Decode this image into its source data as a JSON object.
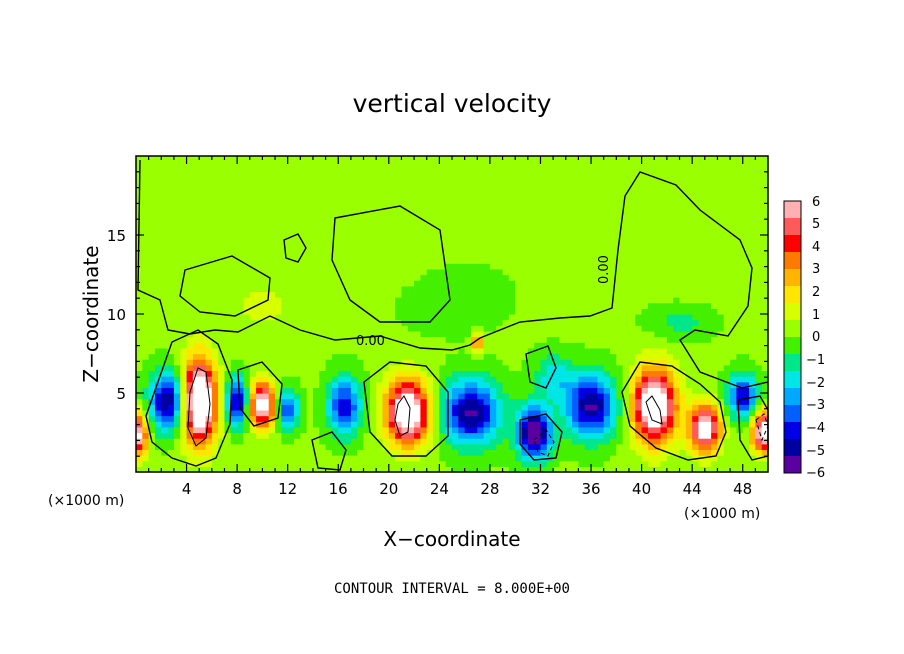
{
  "chart_data": {
    "type": "heatmap",
    "title": "vertical velocity",
    "xlabel": "X−coordinate",
    "ylabel": "Z−coordinate",
    "x_unit_left": "(×1000 m)",
    "x_unit_right": "(×1000 m)",
    "xlim": [
      0,
      50
    ],
    "ylim": [
      0,
      20
    ],
    "x_ticks": [
      "4",
      "8",
      "12",
      "16",
      "20",
      "24",
      "28",
      "32",
      "36",
      "40",
      "44",
      "48"
    ],
    "y_ticks": [
      "5",
      "10",
      "15"
    ],
    "colorbar": {
      "ticks": [
        "6",
        "5",
        "4",
        "3",
        "2",
        "1",
        "0",
        "−1",
        "−2",
        "−3",
        "−4",
        "−5",
        "−6"
      ],
      "range": [
        -6,
        6
      ],
      "colors": [
        "#ffb0b0",
        "#ff5a5a",
        "#ff0000",
        "#ff7a00",
        "#ffb400",
        "#ffe600",
        "#d8ff00",
        "#9aff00",
        "#44f000",
        "#00e68a",
        "#00e6e6",
        "#00a8ff",
        "#0060ff",
        "#0000e6",
        "#0000a0",
        "#5a00a0"
      ]
    },
    "contour_labels": [
      "0.00",
      "0.00"
    ],
    "footer": "CONTOUR INTERVAL = 8.000E+00",
    "features": [
      {
        "x": 5.0,
        "z": 4.5,
        "sx": 1.3,
        "sz": 2.6,
        "amp": 9
      },
      {
        "x": 10.0,
        "z": 4.3,
        "sx": 1.0,
        "sz": 1.4,
        "amp": 7
      },
      {
        "x": 21.5,
        "z": 3.8,
        "sx": 1.7,
        "sz": 2.0,
        "amp": 8
      },
      {
        "x": 41.0,
        "z": 4.2,
        "sx": 1.7,
        "sz": 2.3,
        "amp": 8
      },
      {
        "x": 45.0,
        "z": 2.8,
        "sx": 1.2,
        "sz": 1.5,
        "amp": 7
      },
      {
        "x": 49.6,
        "z": 2.6,
        "sx": 0.9,
        "sz": 1.3,
        "amp": 7
      },
      {
        "x": 0.2,
        "z": 2.4,
        "sx": 0.7,
        "sz": 1.3,
        "amp": 6
      },
      {
        "x": 27.0,
        "z": 8.2,
        "sx": 0.35,
        "sz": 0.6,
        "amp": 5
      },
      {
        "x": 12.0,
        "z": 4.0,
        "sx": 0.9,
        "sz": 1.2,
        "amp": -4
      },
      {
        "x": 8.0,
        "z": 4.5,
        "sx": 0.9,
        "sz": 1.5,
        "amp": -5
      },
      {
        "x": 2.5,
        "z": 4.5,
        "sx": 1.4,
        "sz": 1.8,
        "amp": -5.5
      },
      {
        "x": 16.5,
        "z": 4.2,
        "sx": 1.3,
        "sz": 1.8,
        "amp": -4.5
      },
      {
        "x": 26.5,
        "z": 3.8,
        "sx": 2.3,
        "sz": 2.0,
        "amp": -5.5
      },
      {
        "x": 31.5,
        "z": 2.5,
        "sx": 1.3,
        "sz": 1.6,
        "amp": -6.5
      },
      {
        "x": 36.0,
        "z": 4.2,
        "sx": 2.0,
        "sz": 2.0,
        "amp": -5.5
      },
      {
        "x": 48.0,
        "z": 4.8,
        "sx": 1.2,
        "sz": 1.4,
        "amp": -4.5
      },
      {
        "x": 33.0,
        "z": 6.0,
        "sx": 1.5,
        "sz": 1.5,
        "amp": -2
      },
      {
        "x": 43.0,
        "z": 9.5,
        "sx": 2.5,
        "sz": 1.0,
        "amp": -1.2
      },
      {
        "x": 25.0,
        "z": 11.0,
        "sx": 4.0,
        "sz": 2.0,
        "amp": -0.8
      },
      {
        "x": 10.0,
        "z": 10.5,
        "sx": 3.0,
        "sz": 1.6,
        "amp": 0.8
      },
      {
        "x": 20.0,
        "z": 15.0,
        "sx": 4.0,
        "sz": 3.0,
        "amp": 0.6
      },
      {
        "x": 45.0,
        "z": 16.0,
        "sx": 4.0,
        "sz": 3.0,
        "amp": 0.5
      }
    ]
  }
}
